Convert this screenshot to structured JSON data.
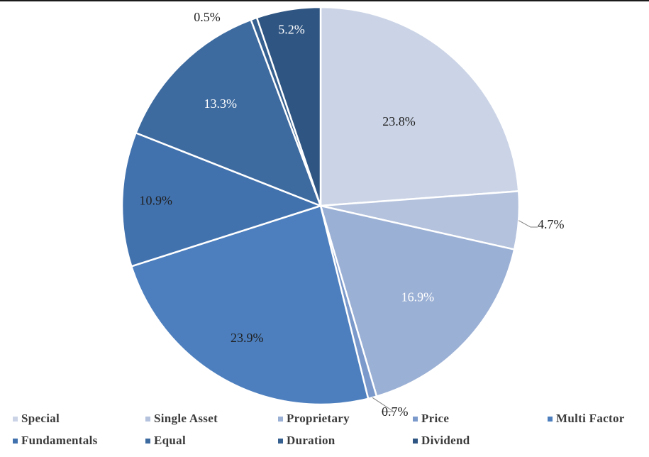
{
  "chart_data": {
    "type": "pie",
    "title": "",
    "slices": [
      {
        "label": "Special",
        "value": 23.8,
        "display": "23.8%",
        "color": "#cbd4e6",
        "text_color": "#1f1f1f"
      },
      {
        "label": "Single Asset",
        "value": 4.7,
        "display": "4.7%",
        "color": "#b4c2dd",
        "text_color": "#1f1f1f"
      },
      {
        "label": "Proprietary",
        "value": 16.9,
        "display": "16.9%",
        "color": "#9bb0d5",
        "text_color": "#ffffff"
      },
      {
        "label": "Price",
        "value": 0.7,
        "display": "0.7%",
        "color": "#7b9acb",
        "text_color": "#1f1f1f"
      },
      {
        "label": "Multi Factor",
        "value": 23.9,
        "display": "23.9%",
        "color": "#4d7fbe",
        "text_color": "#1f1f1f"
      },
      {
        "label": "Fundamentals",
        "value": 10.9,
        "display": "10.9%",
        "color": "#4272ae",
        "text_color": "#1f1f1f"
      },
      {
        "label": "Equal",
        "value": 13.3,
        "display": "13.3%",
        "color": "#3d6a9f",
        "text_color": "#ffffff"
      },
      {
        "label": "Duration",
        "value": 0.5,
        "display": "0.5%",
        "color": "#36608f",
        "text_color": "#1f1f1f"
      },
      {
        "label": "Dividend",
        "value": 5.2,
        "display": "5.2%",
        "color": "#2f5582",
        "text_color": "#ffffff"
      }
    ],
    "legend": {
      "placement": "bottom",
      "entries": [
        "Special",
        "Single Asset",
        "Proprietary",
        "Price",
        "Multi Factor",
        "Fundamentals",
        "Equal",
        "Duration",
        "Dividend"
      ]
    }
  }
}
